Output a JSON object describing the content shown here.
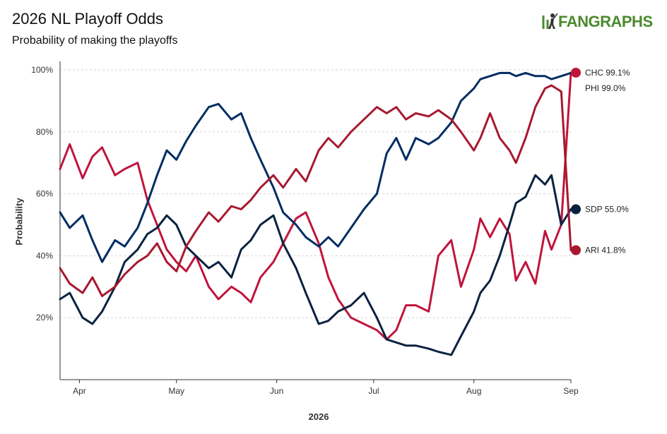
{
  "header": {
    "title": "2026 NL Playoff Odds",
    "subtitle": "Probability of making the playoffs"
  },
  "logo": {
    "text": "FANGRAPHS",
    "icon": "batter-icon",
    "color": "#4b8a2d"
  },
  "chart_data": {
    "type": "line",
    "title": "2026 NL Playoff Odds",
    "subtitle": "Probability of making the playoffs",
    "xlabel": "2026",
    "ylabel": "Probability",
    "ylim": [
      0,
      100
    ],
    "yticks": [
      "20%",
      "40%",
      "60%",
      "80%",
      "100%"
    ],
    "ytick_values": [
      20,
      40,
      60,
      80,
      100
    ],
    "xlim": [
      "2026-03-26",
      "2026-08-31"
    ],
    "xticks": [
      {
        "label": "Apr",
        "date": "2026-04-01"
      },
      {
        "label": "May",
        "date": "2026-05-01"
      },
      {
        "label": "Jun",
        "date": "2026-06-01"
      },
      {
        "label": "Jul",
        "date": "2026-07-01"
      },
      {
        "label": "Aug",
        "date": "2026-08-01"
      },
      {
        "label": "Sep",
        "date": "2026-08-31"
      }
    ],
    "grid": "horizontal dashed",
    "series": [
      {
        "name": "CHC",
        "end_label": "CHC 99.1%",
        "color": "#c0143c",
        "points": [
          [
            "2026-03-26",
            68
          ],
          [
            "2026-03-29",
            76
          ],
          [
            "2026-04-02",
            65
          ],
          [
            "2026-04-05",
            72
          ],
          [
            "2026-04-08",
            75
          ],
          [
            "2026-04-12",
            66
          ],
          [
            "2026-04-15",
            68
          ],
          [
            "2026-04-19",
            70
          ],
          [
            "2026-04-22",
            58
          ],
          [
            "2026-04-25",
            50
          ],
          [
            "2026-04-28",
            42
          ],
          [
            "2026-05-01",
            38
          ],
          [
            "2026-05-04",
            35
          ],
          [
            "2026-05-07",
            40
          ],
          [
            "2026-05-11",
            30
          ],
          [
            "2026-05-14",
            26
          ],
          [
            "2026-05-18",
            30
          ],
          [
            "2026-05-21",
            28
          ],
          [
            "2026-05-24",
            25
          ],
          [
            "2026-05-27",
            33
          ],
          [
            "2026-05-31",
            38
          ],
          [
            "2026-06-03",
            44
          ],
          [
            "2026-06-07",
            52
          ],
          [
            "2026-06-10",
            54
          ],
          [
            "2026-06-14",
            44
          ],
          [
            "2026-06-17",
            33
          ],
          [
            "2026-06-20",
            26
          ],
          [
            "2026-06-24",
            20
          ],
          [
            "2026-06-28",
            18
          ],
          [
            "2026-07-02",
            16
          ],
          [
            "2026-07-05",
            13
          ],
          [
            "2026-07-08",
            16
          ],
          [
            "2026-07-11",
            24
          ],
          [
            "2026-07-14",
            24
          ],
          [
            "2026-07-18",
            22
          ],
          [
            "2026-07-21",
            40
          ],
          [
            "2026-07-25",
            45
          ],
          [
            "2026-07-28",
            30
          ],
          [
            "2026-08-01",
            42
          ],
          [
            "2026-08-03",
            52
          ],
          [
            "2026-08-06",
            46
          ],
          [
            "2026-08-09",
            52
          ],
          [
            "2026-08-12",
            47
          ],
          [
            "2026-08-14",
            32
          ],
          [
            "2026-08-17",
            38
          ],
          [
            "2026-08-20",
            31
          ],
          [
            "2026-08-23",
            48
          ],
          [
            "2026-08-25",
            42
          ],
          [
            "2026-08-28",
            50
          ],
          [
            "2026-08-31",
            99.1
          ]
        ]
      },
      {
        "name": "PHI",
        "end_label": "PHI 99.0%",
        "color": "#002d62",
        "points": [
          [
            "2026-03-26",
            54
          ],
          [
            "2026-03-29",
            49
          ],
          [
            "2026-04-02",
            53
          ],
          [
            "2026-04-05",
            45
          ],
          [
            "2026-04-08",
            38
          ],
          [
            "2026-04-12",
            45
          ],
          [
            "2026-04-15",
            43
          ],
          [
            "2026-04-19",
            49
          ],
          [
            "2026-04-22",
            57
          ],
          [
            "2026-04-25",
            66
          ],
          [
            "2026-04-28",
            74
          ],
          [
            "2026-05-01",
            71
          ],
          [
            "2026-05-04",
            77
          ],
          [
            "2026-05-07",
            82
          ],
          [
            "2026-05-11",
            88
          ],
          [
            "2026-05-14",
            89
          ],
          [
            "2026-05-18",
            84
          ],
          [
            "2026-05-21",
            86
          ],
          [
            "2026-05-24",
            78
          ],
          [
            "2026-05-27",
            71
          ],
          [
            "2026-05-31",
            62
          ],
          [
            "2026-06-03",
            54
          ],
          [
            "2026-06-07",
            50
          ],
          [
            "2026-06-10",
            46
          ],
          [
            "2026-06-14",
            43
          ],
          [
            "2026-06-17",
            46
          ],
          [
            "2026-06-20",
            43
          ],
          [
            "2026-06-24",
            49
          ],
          [
            "2026-06-28",
            55
          ],
          [
            "2026-07-02",
            60
          ],
          [
            "2026-07-05",
            73
          ],
          [
            "2026-07-08",
            78
          ],
          [
            "2026-07-11",
            71
          ],
          [
            "2026-07-14",
            78
          ],
          [
            "2026-07-18",
            76
          ],
          [
            "2026-07-21",
            78
          ],
          [
            "2026-07-25",
            83
          ],
          [
            "2026-07-28",
            90
          ],
          [
            "2026-08-01",
            94
          ],
          [
            "2026-08-03",
            97
          ],
          [
            "2026-08-06",
            98
          ],
          [
            "2026-08-09",
            99
          ],
          [
            "2026-08-12",
            99
          ],
          [
            "2026-08-14",
            98
          ],
          [
            "2026-08-17",
            99
          ],
          [
            "2026-08-20",
            98
          ],
          [
            "2026-08-23",
            98
          ],
          [
            "2026-08-25",
            97
          ],
          [
            "2026-08-28",
            98
          ],
          [
            "2026-08-31",
            99.0
          ]
        ]
      },
      {
        "name": "SDP",
        "end_label": "SDP 55.0%",
        "color": "#0a2240",
        "points": [
          [
            "2026-03-26",
            26
          ],
          [
            "2026-03-29",
            28
          ],
          [
            "2026-04-02",
            20
          ],
          [
            "2026-04-05",
            18
          ],
          [
            "2026-04-08",
            22
          ],
          [
            "2026-04-12",
            30
          ],
          [
            "2026-04-15",
            38
          ],
          [
            "2026-04-19",
            42
          ],
          [
            "2026-04-22",
            47
          ],
          [
            "2026-04-25",
            49
          ],
          [
            "2026-04-28",
            53
          ],
          [
            "2026-05-01",
            50
          ],
          [
            "2026-05-04",
            43
          ],
          [
            "2026-05-07",
            40
          ],
          [
            "2026-05-11",
            36
          ],
          [
            "2026-05-14",
            38
          ],
          [
            "2026-05-18",
            33
          ],
          [
            "2026-05-21",
            42
          ],
          [
            "2026-05-24",
            45
          ],
          [
            "2026-05-27",
            50
          ],
          [
            "2026-05-31",
            53
          ],
          [
            "2026-06-03",
            44
          ],
          [
            "2026-06-07",
            36
          ],
          [
            "2026-06-10",
            28
          ],
          [
            "2026-06-14",
            18
          ],
          [
            "2026-06-17",
            19
          ],
          [
            "2026-06-20",
            22
          ],
          [
            "2026-06-24",
            24
          ],
          [
            "2026-06-28",
            28
          ],
          [
            "2026-07-02",
            20
          ],
          [
            "2026-07-05",
            13
          ],
          [
            "2026-07-08",
            12
          ],
          [
            "2026-07-11",
            11
          ],
          [
            "2026-07-14",
            11
          ],
          [
            "2026-07-18",
            10
          ],
          [
            "2026-07-21",
            9
          ],
          [
            "2026-07-25",
            8
          ],
          [
            "2026-07-28",
            14
          ],
          [
            "2026-08-01",
            22
          ],
          [
            "2026-08-03",
            28
          ],
          [
            "2026-08-06",
            32
          ],
          [
            "2026-08-09",
            40
          ],
          [
            "2026-08-12",
            50
          ],
          [
            "2026-08-14",
            57
          ],
          [
            "2026-08-17",
            59
          ],
          [
            "2026-08-20",
            66
          ],
          [
            "2026-08-23",
            63
          ],
          [
            "2026-08-25",
            66
          ],
          [
            "2026-08-28",
            50
          ],
          [
            "2026-08-31",
            55.0
          ]
        ]
      },
      {
        "name": "ARI",
        "end_label": "ARI 41.8%",
        "color": "#a71930",
        "points": [
          [
            "2026-03-26",
            36
          ],
          [
            "2026-03-29",
            31
          ],
          [
            "2026-04-02",
            28
          ],
          [
            "2026-04-05",
            33
          ],
          [
            "2026-04-08",
            27
          ],
          [
            "2026-04-12",
            30
          ],
          [
            "2026-04-15",
            34
          ],
          [
            "2026-04-19",
            38
          ],
          [
            "2026-04-22",
            40
          ],
          [
            "2026-04-25",
            44
          ],
          [
            "2026-04-28",
            38
          ],
          [
            "2026-05-01",
            35
          ],
          [
            "2026-05-04",
            43
          ],
          [
            "2026-05-07",
            48
          ],
          [
            "2026-05-11",
            54
          ],
          [
            "2026-05-14",
            51
          ],
          [
            "2026-05-18",
            56
          ],
          [
            "2026-05-21",
            55
          ],
          [
            "2026-05-24",
            58
          ],
          [
            "2026-05-27",
            62
          ],
          [
            "2026-05-31",
            66
          ],
          [
            "2026-06-03",
            62
          ],
          [
            "2026-06-07",
            68
          ],
          [
            "2026-06-10",
            64
          ],
          [
            "2026-06-14",
            74
          ],
          [
            "2026-06-17",
            78
          ],
          [
            "2026-06-20",
            75
          ],
          [
            "2026-06-24",
            80
          ],
          [
            "2026-06-28",
            84
          ],
          [
            "2026-07-02",
            88
          ],
          [
            "2026-07-05",
            86
          ],
          [
            "2026-07-08",
            88
          ],
          [
            "2026-07-11",
            84
          ],
          [
            "2026-07-14",
            86
          ],
          [
            "2026-07-18",
            85
          ],
          [
            "2026-07-21",
            87
          ],
          [
            "2026-07-25",
            84
          ],
          [
            "2026-07-28",
            80
          ],
          [
            "2026-08-01",
            74
          ],
          [
            "2026-08-03",
            78
          ],
          [
            "2026-08-06",
            86
          ],
          [
            "2026-08-09",
            78
          ],
          [
            "2026-08-12",
            74
          ],
          [
            "2026-08-14",
            70
          ],
          [
            "2026-08-17",
            78
          ],
          [
            "2026-08-20",
            88
          ],
          [
            "2026-08-23",
            94
          ],
          [
            "2026-08-25",
            95
          ],
          [
            "2026-08-28",
            93
          ],
          [
            "2026-08-31",
            41.8
          ]
        ]
      }
    ]
  }
}
